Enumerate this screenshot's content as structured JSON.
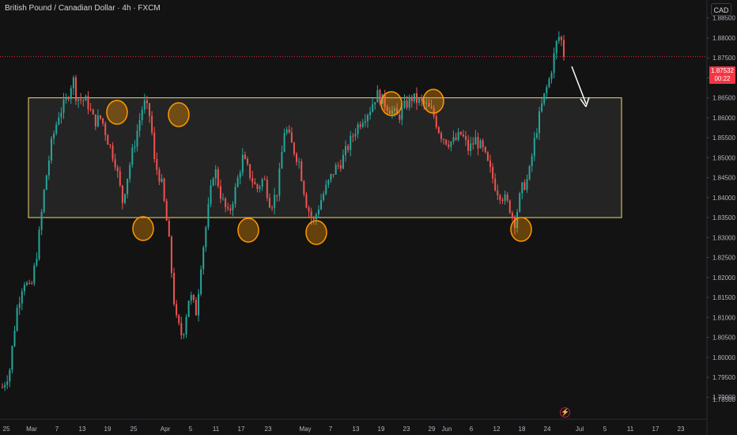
{
  "header": {
    "title": "British Pound / Canadian Dollar · 4h · FXCM",
    "currency": "CAD"
  },
  "price_tag": {
    "price": "1.87532",
    "countdown": "00:22"
  },
  "colors": {
    "background": "#131313",
    "up": "#26a69a",
    "down": "#ef5350",
    "range_box": "#f5d76e",
    "circle": "#ff9800",
    "last_price_line": "#f23645",
    "axis_text": "#b2b5be"
  },
  "chart_data": {
    "type": "candlestick",
    "title": "British Pound / Canadian Dollar · 4h · FXCM",
    "y_axis": {
      "ylim": [
        1.7845,
        1.8895
      ],
      "ticks": [
        1.885,
        1.88,
        1.875,
        1.87,
        1.865,
        1.86,
        1.855,
        1.85,
        1.845,
        1.84,
        1.835,
        1.83,
        1.825,
        1.82,
        1.815,
        1.81,
        1.805,
        1.8,
        1.795,
        1.79
      ],
      "tick_labels": [
        "1.88500",
        "1.88000",
        "1.87500",
        "1.87000",
        "1.86500",
        "1.86000",
        "1.85500",
        "1.85000",
        "1.84500",
        "1.84000",
        "1.83500",
        "1.83000",
        "1.82500",
        "1.82000",
        "1.81500",
        "1.81000",
        "1.80500",
        "1.80000",
        "1.79500",
        "1.79000"
      ],
      "last_label": "1.78500"
    },
    "x_axis": {
      "labels": [
        "25",
        "Mar",
        "7",
        "13",
        "19",
        "25",
        "Apr",
        "5",
        "11",
        "17",
        "23",
        "May",
        "7",
        "13",
        "19",
        "23",
        "29",
        "Jun",
        "6",
        "12",
        "18",
        "24",
        "Jul",
        "5",
        "11",
        "17",
        "23"
      ]
    },
    "last_price": 1.87532,
    "range_box": {
      "low": 1.835,
      "high": 1.865,
      "from": "Mar",
      "to": "Jul 5"
    },
    "annotations": {
      "resistance_touches": 4,
      "support_touches": 4,
      "arrow": "down"
    },
    "series_path": [
      [
        0,
        1.7925
      ],
      [
        2,
        1.7965
      ],
      [
        4,
        1.8115
      ],
      [
        6,
        1.8195
      ],
      [
        8,
        1.8165
      ],
      [
        10,
        1.8275
      ],
      [
        12,
        1.843
      ],
      [
        14,
        1.854
      ],
      [
        16,
        1.861
      ],
      [
        18,
        1.864
      ],
      [
        20,
        1.87
      ],
      [
        21,
        1.865
      ],
      [
        24,
        1.864
      ],
      [
        26,
        1.859
      ],
      [
        28,
        1.86
      ],
      [
        30,
        1.854
      ],
      [
        32,
        1.849
      ],
      [
        34,
        1.839
      ],
      [
        36,
        1.848
      ],
      [
        38,
        1.856
      ],
      [
        40,
        1.864
      ],
      [
        42,
        1.86
      ],
      [
        43,
        1.849
      ],
      [
        45,
        1.844
      ],
      [
        47,
        1.831
      ],
      [
        49,
        1.81
      ],
      [
        51,
        1.805
      ],
      [
        53,
        1.816
      ],
      [
        55,
        1.811
      ],
      [
        56,
        1.822
      ],
      [
        58,
        1.835
      ],
      [
        60,
        1.848
      ],
      [
        62,
        1.84
      ],
      [
        64,
        1.8355
      ],
      [
        66,
        1.842
      ],
      [
        68,
        1.85
      ],
      [
        70,
        1.846
      ],
      [
        72,
        1.842
      ],
      [
        74,
        1.845
      ],
      [
        76,
        1.838
      ],
      [
        78,
        1.842
      ],
      [
        80,
        1.858
      ],
      [
        82,
        1.853
      ],
      [
        84,
        1.849
      ],
      [
        86,
        1.839
      ],
      [
        88,
        1.8335
      ],
      [
        90,
        1.839
      ],
      [
        92,
        1.843
      ],
      [
        94,
        1.847
      ],
      [
        96,
        1.849
      ],
      [
        98,
        1.853
      ],
      [
        100,
        1.857
      ],
      [
        102,
        1.86
      ],
      [
        104,
        1.862
      ],
      [
        106,
        1.866
      ],
      [
        108,
        1.864
      ],
      [
        110,
        1.862
      ],
      [
        112,
        1.86
      ],
      [
        114,
        1.863
      ],
      [
        116,
        1.865
      ],
      [
        118,
        1.864
      ],
      [
        120,
        1.863
      ],
      [
        122,
        1.861
      ],
      [
        124,
        1.856
      ],
      [
        126,
        1.854
      ],
      [
        128,
        1.854
      ],
      [
        130,
        1.856
      ],
      [
        132,
        1.852
      ],
      [
        134,
        1.8545
      ],
      [
        136,
        1.852
      ],
      [
        138,
        1.847
      ],
      [
        140,
        1.842
      ],
      [
        142,
        1.84
      ],
      [
        144,
        1.837
      ],
      [
        145,
        1.8335
      ],
      [
        147,
        1.842
      ],
      [
        149,
        1.845
      ],
      [
        151,
        1.856
      ],
      [
        153,
        1.864
      ],
      [
        155,
        1.87
      ],
      [
        157,
        1.879
      ],
      [
        158,
        1.881
      ],
      [
        159,
        1.8753
      ]
    ]
  }
}
